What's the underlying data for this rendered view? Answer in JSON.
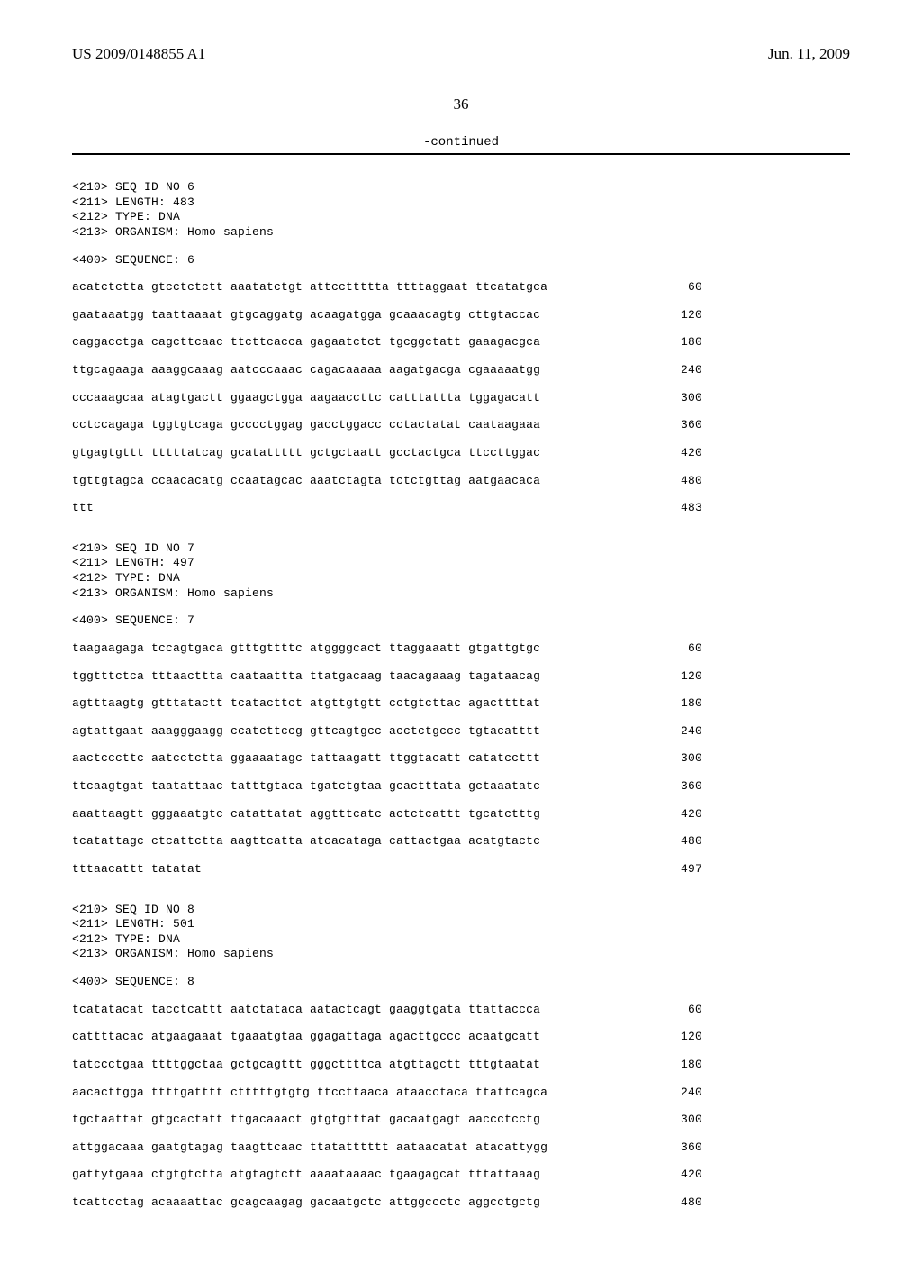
{
  "header": {
    "pub_number": "US 2009/0148855 A1",
    "pub_date": "Jun. 11, 2009"
  },
  "page_number": "36",
  "continued_label": "-continued",
  "sequences": [
    {
      "meta": [
        "<210> SEQ ID NO 6",
        "<211> LENGTH: 483",
        "<212> TYPE: DNA",
        "<213> ORGANISM: Homo sapiens"
      ],
      "seq_label": "<400> SEQUENCE: 6",
      "lines": [
        {
          "seq": "acatctctta gtcctctctt aaatatctgt attccttttta ttttaggaat ttcatatgca",
          "pos": "60"
        },
        {
          "seq": "gaataaatgg taattaaaat gtgcaggatg acaagatgga gcaaacagtg cttgtaccac",
          "pos": "120"
        },
        {
          "seq": "caggacctga cagcttcaac ttcttcacca gagaatctct tgcggctatt gaaagacgca",
          "pos": "180"
        },
        {
          "seq": "ttgcagaaga aaaggcaaag aatcccaaac cagacaaaaa aagatgacga cgaaaaatgg",
          "pos": "240"
        },
        {
          "seq": "cccaaagcaa atagtgactt ggaagctgga aagaaccttc catttattta tggagacatt",
          "pos": "300"
        },
        {
          "seq": "cctccagaga tggtgtcaga gcccctggag gacctggacc cctactatat caataagaaa",
          "pos": "360"
        },
        {
          "seq": "gtgagtgttt tttttatcag gcatattttt gctgctaatt gcctactgca ttccttggac",
          "pos": "420"
        },
        {
          "seq": "tgttgtagca ccaacacatg ccaatagcac aaatctagta tctctgttag aatgaacaca",
          "pos": "480"
        },
        {
          "seq": "ttt",
          "pos": "483"
        }
      ]
    },
    {
      "meta": [
        "<210> SEQ ID NO 7",
        "<211> LENGTH: 497",
        "<212> TYPE: DNA",
        "<213> ORGANISM: Homo sapiens"
      ],
      "seq_label": "<400> SEQUENCE: 7",
      "lines": [
        {
          "seq": "taagaagaga tccagtgaca gtttgttttc atggggcact ttaggaaatt gtgattgtgc",
          "pos": "60"
        },
        {
          "seq": "tggtttctca tttaacttta caataattta ttatgacaag taacagaaag tagataacag",
          "pos": "120"
        },
        {
          "seq": "agtttaagtg gtttatactt tcatacttct atgttgtgtt cctgtcttac agacttttat",
          "pos": "180"
        },
        {
          "seq": "agtattgaat aaagggaagg ccatcttccg gttcagtgcc acctctgccc tgtacatttt",
          "pos": "240"
        },
        {
          "seq": "aactcccttc aatcctctta ggaaaatagc tattaagatt ttggtacatt catatccttt",
          "pos": "300"
        },
        {
          "seq": "ttcaagtgat taatattaac tatttgtaca tgatctgtaa gcactttata gctaaatatc",
          "pos": "360"
        },
        {
          "seq": "aaattaagtt gggaaatgtc catattatat aggtttcatc actctcattt tgcatctttg",
          "pos": "420"
        },
        {
          "seq": "tcatattagc ctcattctta aagttcatta atcacataga cattactgaa acatgtactc",
          "pos": "480"
        },
        {
          "seq": "tttaacattt tatatat",
          "pos": "497"
        }
      ]
    },
    {
      "meta": [
        "<210> SEQ ID NO 8",
        "<211> LENGTH: 501",
        "<212> TYPE: DNA",
        "<213> ORGANISM: Homo sapiens"
      ],
      "seq_label": "<400> SEQUENCE: 8",
      "lines": [
        {
          "seq": "tcatatacat tacctcattt aatctataca aatactcagt gaaggtgata ttattaccca",
          "pos": "60"
        },
        {
          "seq": "cattttacac atgaagaaat tgaaatgtaa ggagattaga agacttgccc acaatgcatt",
          "pos": "120"
        },
        {
          "seq": "tatccctgaa ttttggctaa gctgcagttt gggcttttca atgttagctt tttgtaatat",
          "pos": "180"
        },
        {
          "seq": "aacacttgga ttttgatttt ctttttgtgtg ttccttaaca ataacctaca ttattcagca",
          "pos": "240"
        },
        {
          "seq": "tgctaattat gtgcactatt ttgacaaact gtgtgtttat gacaatgagt aaccctcctg",
          "pos": "300"
        },
        {
          "seq": "attggacaaa gaatgtagag taagttcaac ttatatttttt aataacatat atacattygg",
          "pos": "360"
        },
        {
          "seq": "gattytgaaa ctgtgtctta atgtagtctt aaaataaaac tgaagagcat tttattaaag",
          "pos": "420"
        },
        {
          "seq": "tcattcctag acaaaattac gcagcaagag gacaatgctc attggccctc aggcctgctg",
          "pos": "480"
        }
      ]
    }
  ]
}
